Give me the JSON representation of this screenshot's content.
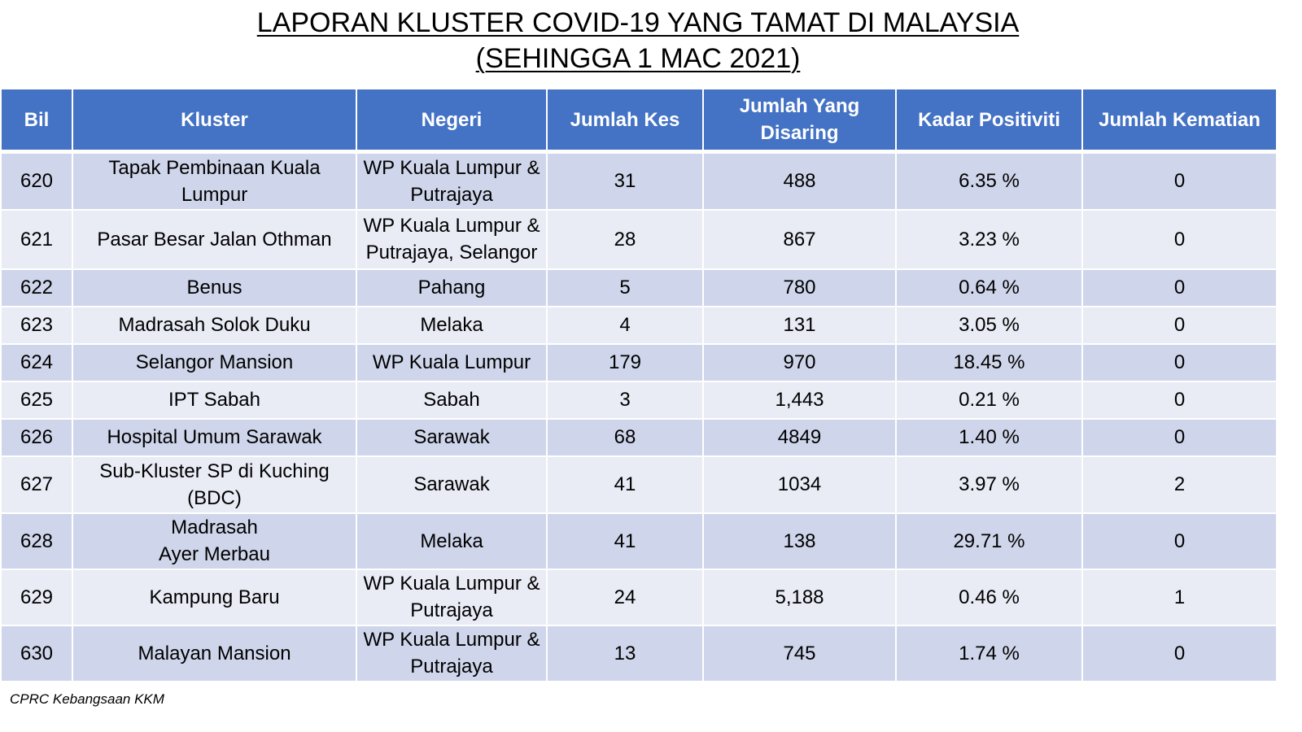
{
  "title": {
    "line1": "LAPORAN KLUSTER COVID-19 YANG TAMAT DI MALAYSIA",
    "line2": "(SEHINGGA 1 MAC 2021)"
  },
  "table": {
    "headers": [
      "Bil",
      "Kluster",
      "Negeri",
      "Jumlah Kes",
      "Jumlah Yang Disaring",
      "Kadar Positiviti",
      "Jumlah Kematian"
    ],
    "rows": [
      [
        "620",
        "Tapak Pembinaan Kuala Lumpur",
        "WP Kuala Lumpur & Putrajaya",
        "31",
        "488",
        "6.35 %",
        "0"
      ],
      [
        "621",
        "Pasar Besar Jalan Othman",
        "WP Kuala Lumpur & Putrajaya,  Selangor",
        "28",
        "867",
        "3.23 %",
        "0"
      ],
      [
        "622",
        "Benus",
        "Pahang",
        "5",
        "780",
        "0.64 %",
        "0"
      ],
      [
        "623",
        "Madrasah Solok Duku",
        "Melaka",
        "4",
        "131",
        "3.05 %",
        "0"
      ],
      [
        "624",
        "Selangor Mansion",
        "WP Kuala Lumpur",
        "179",
        "970",
        "18.45 %",
        "0"
      ],
      [
        "625",
        "IPT Sabah",
        "Sabah",
        "3",
        "1,443",
        "0.21 %",
        "0"
      ],
      [
        "626",
        "Hospital Umum Sarawak",
        "Sarawak",
        "68",
        "4849",
        "1.40 %",
        "0"
      ],
      [
        "627",
        "Sub-Kluster SP di Kuching (BDC)",
        "Sarawak",
        "41",
        "1034",
        "3.97 %",
        "2"
      ],
      [
        "628",
        "Madrasah Ayer Merbau",
        "Melaka",
        "41",
        "138",
        "29.71 %",
        "0"
      ],
      [
        "629",
        "Kampung Baru",
        "WP Kuala Lumpur & Putrajaya",
        "24",
        "5,188",
        "0.46 %",
        "1"
      ],
      [
        "630",
        "Malayan Mansion",
        "WP Kuala Lumpur & Putrajaya",
        "13",
        "745",
        "1.74 %",
        "0"
      ]
    ]
  },
  "footer": {
    "source": "CPRC Kebangsaan KKM"
  },
  "colors": {
    "header_bg": "#4472c4",
    "row_dark": "#cfd5ea",
    "row_light": "#e9ebf5"
  }
}
